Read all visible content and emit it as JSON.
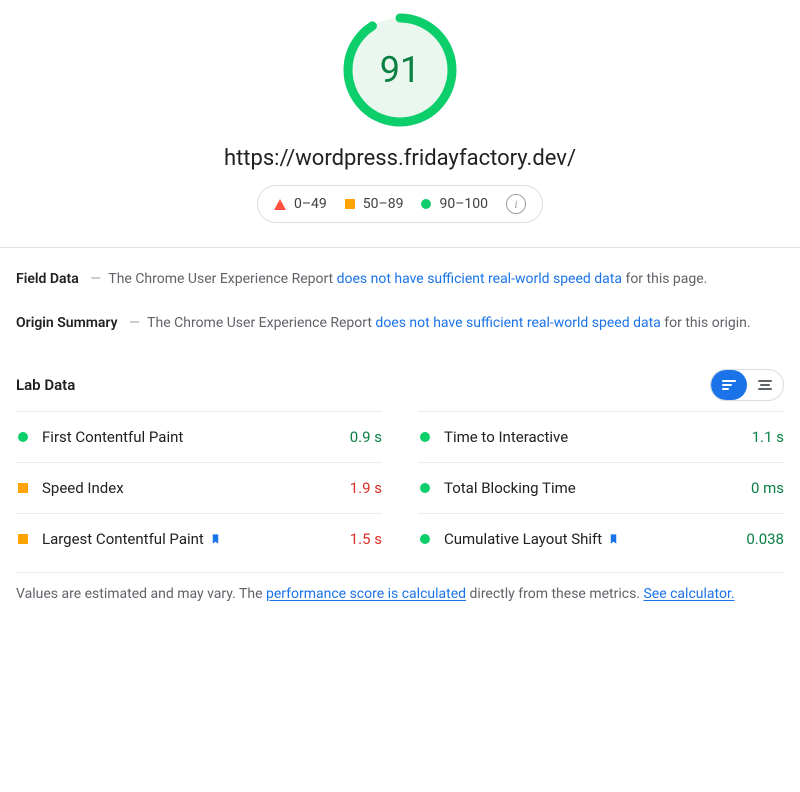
{
  "score": {
    "value": "91",
    "percent": 91,
    "ring_color": "#0cce6b",
    "ring_bg": "#eaf7ee",
    "text_color": "#0b8043",
    "track_width": 9
  },
  "url": "https://wordpress.fridayfactory.dev/",
  "legend": {
    "poor": "0–49",
    "avg": "50–89",
    "good": "90–100",
    "colors": {
      "poor": "#ff4e42",
      "avg": "#ffa400",
      "good": "#0cce6b"
    }
  },
  "field_data": {
    "title": "Field Data",
    "lead": "The Chrome User Experience Report ",
    "link": "does not have sufficient real-world speed data",
    "tail": " for this page."
  },
  "origin_summary": {
    "title": "Origin Summary",
    "lead": "The Chrome User Experience Report ",
    "link": "does not have sufficient real-world speed data",
    "tail": " for this origin."
  },
  "lab": {
    "title": "Lab Data",
    "left": [
      {
        "name": "First Contentful Paint",
        "value": "0.9 s",
        "status": "good",
        "flag": false
      },
      {
        "name": "Speed Index",
        "value": "1.9 s",
        "status": "avg",
        "flag": false
      },
      {
        "name": "Largest Contentful Paint",
        "value": "1.5 s",
        "status": "avg",
        "flag": true
      }
    ],
    "right": [
      {
        "name": "Time to Interactive",
        "value": "1.1 s",
        "status": "good",
        "flag": false
      },
      {
        "name": "Total Blocking Time",
        "value": "0 ms",
        "status": "good",
        "flag": false
      },
      {
        "name": "Cumulative Layout Shift",
        "value": "0.038",
        "status": "good",
        "flag": true
      }
    ],
    "value_colors": {
      "good": "#0b8043",
      "avg": "#d93025"
    }
  },
  "footnote": {
    "pre": "Values are estimated and may vary. The ",
    "link1": "performance score is calculated",
    "mid": " directly from these metrics. ",
    "link2": "See calculator."
  }
}
